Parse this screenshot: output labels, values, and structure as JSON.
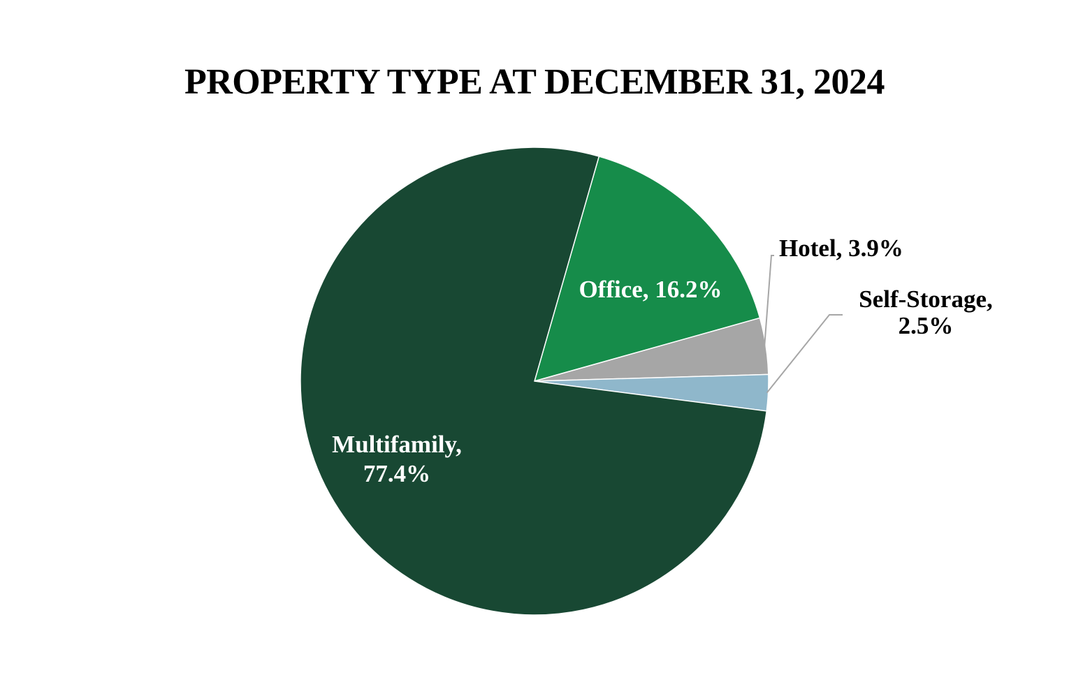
{
  "chart_data": {
    "type": "pie",
    "title": "PROPERTY TYPE AT DECEMBER 31, 2024",
    "slices": [
      {
        "name": "Multifamily",
        "value": 77.4,
        "label_lines": [
          "Multifamily,",
          "77.4%"
        ],
        "color": "#184833",
        "label_color": "#ffffff"
      },
      {
        "name": "Office",
        "value": 16.2,
        "label_lines": [
          "Office, 16.2%"
        ],
        "color": "#168c4a",
        "label_color": "#ffffff"
      },
      {
        "name": "Hotel",
        "value": 3.9,
        "label_lines": [
          "Hotel, 3.9%"
        ],
        "color": "#a6a6a6",
        "label_color": "#000000"
      },
      {
        "name": "Self-Storage",
        "value": 2.5,
        "label_lines": [
          "Self-Storage,",
          "2.5%"
        ],
        "color": "#8fb7cb",
        "label_color": "#000000"
      }
    ]
  }
}
